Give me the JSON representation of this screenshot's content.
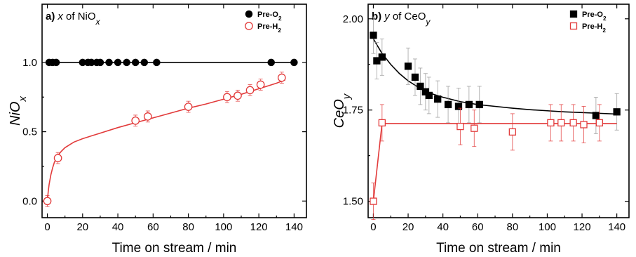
{
  "colors": {
    "pre_o2": "#000000",
    "pre_h2": "#e23a3a",
    "errbar": "#999999",
    "axis": "#000000"
  },
  "chart_data": [
    {
      "type": "scatter",
      "panel_letter": "a)",
      "title_prefix": "x of NiO",
      "title_sub": "x",
      "ylabel_main": "NiO",
      "ylabel_sub": "x",
      "xlabel": "Time on stream / min",
      "xlim": [
        -3,
        147
      ],
      "ylim": [
        -0.12,
        1.42
      ],
      "xticks": [
        0,
        20,
        40,
        60,
        80,
        100,
        120,
        140
      ],
      "yticks": [
        0.0,
        0.5,
        1.0
      ],
      "ytick_labels": [
        "0.0",
        "0.5",
        "1.0"
      ],
      "legend_position": "top-right",
      "marker_open": "circle-open",
      "marker_filled": "circle-filled",
      "series": [
        {
          "name_main": "Pre-O",
          "name_sub": "2",
          "marker": "filled",
          "x": [
            1,
            3,
            5,
            20,
            23,
            25,
            28,
            30,
            35,
            40,
            45,
            50,
            55,
            62,
            127,
            140
          ],
          "y": [
            1.0,
            1.0,
            1.0,
            1.0,
            1.0,
            1.0,
            1.0,
            1.0,
            1.0,
            1.0,
            1.0,
            1.0,
            1.0,
            1.0,
            1.0,
            1.0
          ],
          "fit": {
            "x": [
              0,
              140
            ],
            "y": [
              1.0,
              1.0
            ]
          }
        },
        {
          "name_main": "Pre-H",
          "name_sub": "2",
          "marker": "open",
          "x": [
            0,
            6,
            50,
            57,
            80,
            102,
            108,
            115,
            121,
            133
          ],
          "y": [
            0.0,
            0.31,
            0.58,
            0.61,
            0.68,
            0.75,
            0.76,
            0.8,
            0.84,
            0.89
          ],
          "err": [
            0.04,
            0.04,
            0.04,
            0.04,
            0.04,
            0.04,
            0.04,
            0.04,
            0.04,
            0.04
          ],
          "fit": {
            "x": [
              0,
              0.5,
              1,
              2,
              3,
              4,
              6,
              8,
              10,
              15,
              20,
              30,
              40,
              50,
              60,
              70,
              80,
              90,
              100,
              110,
              120,
              130,
              135
            ],
            "y": [
              0.0,
              0.07,
              0.12,
              0.19,
              0.24,
              0.28,
              0.33,
              0.36,
              0.385,
              0.425,
              0.45,
              0.49,
              0.53,
              0.565,
              0.6,
              0.635,
              0.67,
              0.7,
              0.735,
              0.77,
              0.81,
              0.85,
              0.875
            ]
          }
        }
      ]
    },
    {
      "type": "scatter",
      "panel_letter": "b)",
      "title_prefix": "y of CeO",
      "title_sub": "y",
      "ylabel_main": "CeO",
      "ylabel_sub": "y",
      "xlabel": "Time on stream / min",
      "xlim": [
        -3,
        147
      ],
      "ylim": [
        1.455,
        2.04
      ],
      "xticks": [
        0,
        20,
        40,
        60,
        80,
        100,
        120,
        140
      ],
      "yticks": [
        1.5,
        1.75,
        2.0
      ],
      "ytick_labels": [
        "1.50",
        "1.75",
        "2.00"
      ],
      "legend_position": "top-right",
      "marker_open": "square-open",
      "marker_filled": "square-filled",
      "series": [
        {
          "name_main": "Pre-O",
          "name_sub": "2",
          "marker": "filled",
          "x": [
            0,
            2,
            5,
            20,
            24,
            27,
            30,
            32,
            37,
            43,
            49,
            55,
            61,
            128,
            140
          ],
          "y": [
            1.955,
            1.885,
            1.895,
            1.87,
            1.84,
            1.815,
            1.8,
            1.79,
            1.78,
            1.765,
            1.76,
            1.765,
            1.765,
            1.735,
            1.745
          ],
          "err": [
            0.05,
            0.05,
            0.05,
            0.05,
            0.05,
            0.05,
            0.05,
            0.05,
            0.05,
            0.05,
            0.05,
            0.05,
            0.05,
            0.05,
            0.05
          ],
          "fit": {
            "x": [
              0,
              5,
              10,
              15,
              20,
              25,
              30,
              40,
              50,
              60,
              70,
              80,
              90,
              100,
              110,
              120,
              130,
              140
            ],
            "y": [
              1.945,
              1.905,
              1.875,
              1.85,
              1.83,
              1.815,
              1.8,
              1.785,
              1.773,
              1.765,
              1.76,
              1.755,
              1.751,
              1.748,
              1.745,
              1.743,
              1.741,
              1.739
            ]
          }
        },
        {
          "name_main": "Pre-H",
          "name_sub": "2",
          "marker": "open",
          "x": [
            0,
            5,
            50,
            58,
            80,
            102,
            108,
            115,
            121,
            130
          ],
          "y": [
            1.5,
            1.715,
            1.705,
            1.7,
            1.69,
            1.715,
            1.715,
            1.715,
            1.71,
            1.715
          ],
          "err": [
            0.05,
            0.05,
            0.05,
            0.05,
            0.05,
            0.05,
            0.05,
            0.05,
            0.05,
            0.05
          ],
          "fit": {
            "x": [
              0,
              5,
              140
            ],
            "y": [
              1.5,
              1.713,
              1.713
            ]
          }
        }
      ]
    }
  ]
}
